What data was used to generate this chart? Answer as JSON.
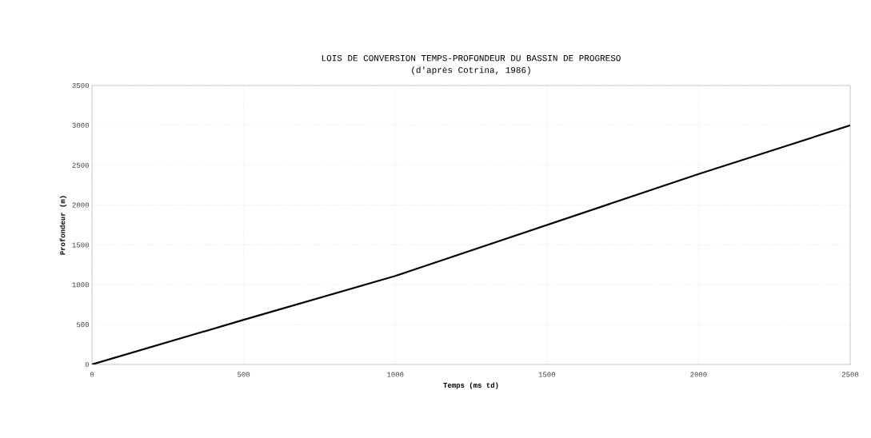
{
  "chart_data": {
    "type": "line",
    "title": "LOIS DE CONVERSION TEMPS-PROFONDEUR DU BASSIN DE PROGRESO",
    "subtitle": "(d'après Cotrina, 1986)",
    "xlabel": "Temps (ms td)",
    "ylabel": "Profondeur (m)",
    "x": [
      0,
      500,
      1000,
      1500,
      2000,
      2500
    ],
    "series": [
      {
        "color": "#000000",
        "values": [
          0,
          560,
          1110,
          1750,
          2390,
          3000
        ]
      }
    ],
    "xlim": [
      0,
      2500
    ],
    "xticks": [
      0,
      500,
      1000,
      1500,
      2000,
      2500
    ],
    "ylim": [
      0,
      3500
    ],
    "yticks": [
      0,
      500,
      1000,
      1500,
      2000,
      2500,
      3000,
      3500
    ],
    "grid": true,
    "marker": "none",
    "line_style": "solid"
  }
}
